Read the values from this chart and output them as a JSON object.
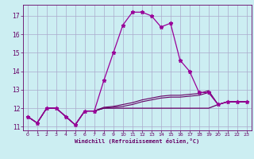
{
  "xlabel": "Windchill (Refroidissement éolien,°C)",
  "background_color": "#cceef2",
  "grid_color": "#aaaacc",
  "line_color": "#990099",
  "line_color2": "#660066",
  "xlim": [
    -0.5,
    23.5
  ],
  "ylim": [
    10.8,
    17.6
  ],
  "yticks": [
    11,
    12,
    13,
    14,
    15,
    16,
    17
  ],
  "xticks": [
    0,
    1,
    2,
    3,
    4,
    5,
    6,
    7,
    8,
    9,
    10,
    11,
    12,
    13,
    14,
    15,
    16,
    17,
    18,
    19,
    20,
    21,
    22,
    23
  ],
  "s1_x": [
    0,
    1,
    2,
    3,
    4,
    5,
    6,
    7,
    8,
    9,
    10,
    11,
    12,
    13,
    14,
    15,
    16,
    17,
    18,
    19,
    20,
    21,
    22,
    23
  ],
  "s1_y": [
    11.55,
    11.2,
    12.0,
    12.0,
    11.55,
    11.1,
    11.85,
    11.85,
    13.5,
    15.0,
    16.5,
    17.2,
    17.2,
    17.0,
    16.4,
    16.6,
    14.6,
    14.0,
    12.85,
    12.85,
    12.2,
    12.35,
    12.35,
    12.35
  ],
  "s2_x": [
    0,
    1,
    2,
    3,
    4,
    5,
    6,
    7,
    8,
    9,
    10,
    11,
    12,
    13,
    14,
    15,
    16,
    17,
    18,
    19,
    20,
    21,
    22,
    23
  ],
  "s2_y": [
    11.55,
    11.2,
    12.0,
    12.0,
    11.55,
    11.1,
    11.85,
    11.85,
    12.05,
    12.1,
    12.2,
    12.3,
    12.45,
    12.55,
    12.65,
    12.7,
    12.7,
    12.75,
    12.8,
    12.95,
    12.2,
    12.35,
    12.35,
    12.35
  ],
  "s3_x": [
    0,
    1,
    2,
    3,
    4,
    5,
    6,
    7,
    8,
    9,
    10,
    11,
    12,
    13,
    14,
    15,
    16,
    17,
    18,
    19,
    20,
    21,
    22,
    23
  ],
  "s3_y": [
    11.55,
    11.2,
    12.0,
    12.0,
    11.55,
    11.1,
    11.85,
    11.85,
    12.0,
    12.05,
    12.1,
    12.2,
    12.35,
    12.45,
    12.55,
    12.6,
    12.6,
    12.65,
    12.7,
    12.85,
    12.2,
    12.35,
    12.35,
    12.35
  ],
  "s4_x": [
    0,
    1,
    2,
    3,
    4,
    5,
    6,
    7,
    8,
    9,
    10,
    11,
    12,
    13,
    14,
    15,
    16,
    17,
    18,
    19,
    20,
    21,
    22,
    23
  ],
  "s4_y": [
    11.55,
    11.2,
    12.0,
    12.0,
    11.55,
    11.1,
    11.85,
    11.85,
    12.0,
    12.0,
    12.0,
    12.0,
    12.0,
    12.0,
    12.0,
    12.0,
    12.0,
    12.0,
    12.0,
    12.0,
    12.2,
    12.35,
    12.35,
    12.35
  ]
}
